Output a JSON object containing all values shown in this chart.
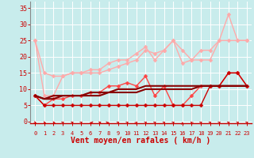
{
  "background_color": "#c8ecec",
  "grid_color": "#b0d8d8",
  "xlabel": "Vent moyen/en rafales ( km/h )",
  "xlabel_color": "#cc0000",
  "xlabel_fontsize": 7,
  "xtick_color": "#cc0000",
  "ytick_color": "#cc0000",
  "ytick_values": [
    0,
    5,
    10,
    15,
    20,
    25,
    30,
    35
  ],
  "xlim": [
    -0.5,
    23.5
  ],
  "ylim": [
    -0.5,
    37
  ],
  "x": [
    0,
    1,
    2,
    3,
    4,
    5,
    6,
    7,
    8,
    9,
    10,
    11,
    12,
    13,
    14,
    15,
    16,
    17,
    18,
    19,
    20,
    21,
    22,
    23
  ],
  "series": [
    {
      "y": [
        25,
        15,
        14,
        14,
        15,
        15,
        15,
        15,
        16,
        17,
        18,
        19,
        22,
        21,
        22,
        25,
        18,
        19,
        19,
        19,
        25,
        33,
        25,
        25
      ],
      "color": "#ffaaaa",
      "linewidth": 1.0,
      "marker": "D",
      "markersize": 2.5
    },
    {
      "y": [
        25,
        8,
        8,
        14,
        15,
        15,
        16,
        16,
        18,
        19,
        19,
        21,
        23,
        19,
        22,
        25,
        22,
        19,
        22,
        22,
        25,
        25,
        25,
        25
      ],
      "color": "#ffaaaa",
      "linewidth": 1.0,
      "marker": "D",
      "markersize": 2.5
    },
    {
      "y": [
        8,
        5,
        7,
        7,
        8,
        8,
        9,
        9,
        11,
        11,
        12,
        11,
        14,
        8,
        11,
        5,
        5,
        8,
        11,
        11,
        11,
        15,
        15,
        11
      ],
      "color": "#ff4444",
      "linewidth": 1.0,
      "marker": "D",
      "markersize": 2.5
    },
    {
      "y": [
        8,
        5,
        5,
        5,
        5,
        5,
        5,
        5,
        5,
        5,
        5,
        5,
        5,
        5,
        5,
        5,
        5,
        5,
        5,
        11,
        11,
        15,
        15,
        11
      ],
      "color": "#cc0000",
      "linewidth": 1.0,
      "marker": "D",
      "markersize": 2.5
    },
    {
      "y": [
        8,
        7,
        8,
        8,
        8,
        8,
        9,
        9,
        9,
        10,
        10,
        10,
        11,
        11,
        11,
        11,
        11,
        11,
        11,
        11,
        11,
        11,
        11,
        11
      ],
      "color": "#880000",
      "linewidth": 1.5,
      "marker": null,
      "markersize": 0
    },
    {
      "y": [
        8,
        7,
        7,
        8,
        8,
        8,
        8,
        8,
        9,
        9,
        9,
        9,
        10,
        10,
        10,
        10,
        10,
        10,
        11,
        11,
        11,
        11,
        11,
        11
      ],
      "color": "#880000",
      "linewidth": 1.5,
      "marker": null,
      "markersize": 0
    }
  ],
  "arrow_angles_deg": [
    45,
    60,
    70,
    135,
    120,
    135,
    270,
    120,
    90,
    135,
    135,
    150,
    135,
    135,
    135,
    135,
    180,
    210,
    135,
    135,
    135,
    135,
    135,
    135
  ]
}
